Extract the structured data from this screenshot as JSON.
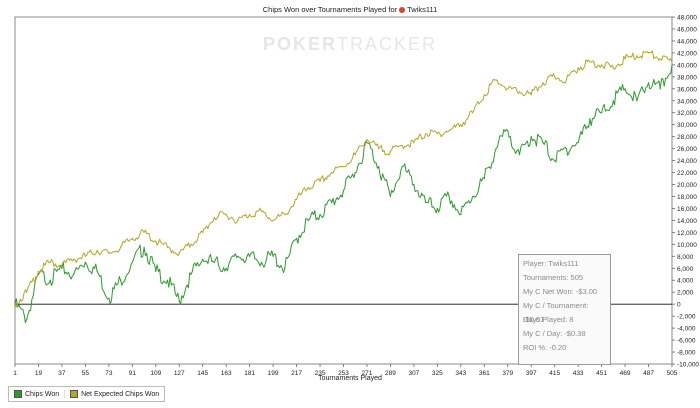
{
  "chart_data": {
    "type": "line",
    "title_prefix": "Chips Won over Tournaments Played for",
    "title_player": "Twiks111",
    "watermark": {
      "bold": "POKER",
      "light": "TRACKER"
    },
    "xlabel": "Tournaments Played",
    "xlim": [
      1,
      505
    ],
    "ylim": [
      -10000,
      48000
    ],
    "x_ticks": [
      "1",
      "19",
      "37",
      "55",
      "73",
      "91",
      "109",
      "127",
      "145",
      "163",
      "181",
      "199",
      "217",
      "235",
      "253",
      "271",
      "289",
      "307",
      "325",
      "343",
      "361",
      "379",
      "397",
      "415",
      "433",
      "451",
      "469",
      "487",
      "505"
    ],
    "y_ticks": [
      "48,000",
      "46,000",
      "44,000",
      "42,000",
      "40,000",
      "38,000",
      "36,000",
      "34,000",
      "32,000",
      "30,000",
      "28,000",
      "26,000",
      "24,000",
      "22,000",
      "20,000",
      "18,000",
      "16,000",
      "14,000",
      "12,000",
      "10,000",
      "8,000",
      "6,000",
      "4,000",
      "2,000",
      "0",
      "-2,000",
      "-4,000",
      "-6,000",
      "-8,000",
      "-10,000"
    ],
    "legend_placement": "bottom-left",
    "series": [
      {
        "name": "Chips Won",
        "color": "#2e9a2e",
        "x": [
          1,
          10,
          19,
          28,
          37,
          46,
          55,
          64,
          73,
          82,
          91,
          100,
          109,
          118,
          127,
          136,
          145,
          154,
          163,
          172,
          181,
          190,
          199,
          208,
          217,
          226,
          235,
          244,
          253,
          262,
          271,
          280,
          289,
          298,
          307,
          316,
          325,
          334,
          343,
          352,
          361,
          370,
          379,
          388,
          397,
          406,
          415,
          424,
          433,
          442,
          451,
          460,
          469,
          478,
          487,
          496,
          505
        ],
        "y": [
          0,
          -2500,
          5000,
          4000,
          6000,
          5000,
          7000,
          5500,
          1000,
          4000,
          7000,
          9500,
          5500,
          4000,
          500,
          5000,
          7500,
          7000,
          6000,
          8000,
          8000,
          7000,
          8000,
          6000,
          11000,
          14000,
          15000,
          17000,
          19000,
          22000,
          27000,
          23000,
          18000,
          23000,
          20000,
          17000,
          16000,
          18000,
          15000,
          18000,
          21000,
          26000,
          29000,
          25000,
          28000,
          27000,
          24000,
          26000,
          27000,
          31000,
          32000,
          34000,
          36000,
          34000,
          37000,
          36000,
          40000
        ]
      },
      {
        "name": "Net Expected Chips Won",
        "color": "#b0a828",
        "x": [
          1,
          10,
          19,
          28,
          37,
          46,
          55,
          64,
          73,
          82,
          91,
          100,
          109,
          118,
          127,
          136,
          145,
          154,
          163,
          172,
          181,
          190,
          199,
          208,
          217,
          226,
          235,
          244,
          253,
          262,
          271,
          280,
          289,
          298,
          307,
          316,
          325,
          334,
          343,
          352,
          361,
          370,
          379,
          388,
          397,
          406,
          415,
          424,
          433,
          442,
          451,
          460,
          469,
          478,
          487,
          496,
          505
        ],
        "y": [
          0,
          2000,
          5500,
          7000,
          6500,
          7500,
          8000,
          9000,
          8500,
          9500,
          11000,
          12000,
          10500,
          9500,
          8500,
          10000,
          12000,
          14500,
          15000,
          14000,
          15000,
          15500,
          14000,
          15000,
          17500,
          19500,
          20500,
          22000,
          23000,
          25000,
          27500,
          26000,
          25500,
          26500,
          27000,
          28500,
          28500,
          29000,
          30000,
          32000,
          35000,
          37500,
          36000,
          35500,
          35000,
          37000,
          38000,
          37500,
          39500,
          40500,
          40000,
          39500,
          41000,
          41500,
          42000,
          41000,
          40500
        ]
      }
    ]
  },
  "stats": {
    "player": "Player: Twiks111",
    "tournaments": "Tournaments: 505",
    "net_won": "My C Net Won: -$3.00",
    "per_tournament": "My C / Tournament: -$0.01",
    "days_played": "Days Played: 8",
    "per_day": "My C / Day: -$0.38",
    "roi": "ROI %: -0.20"
  }
}
